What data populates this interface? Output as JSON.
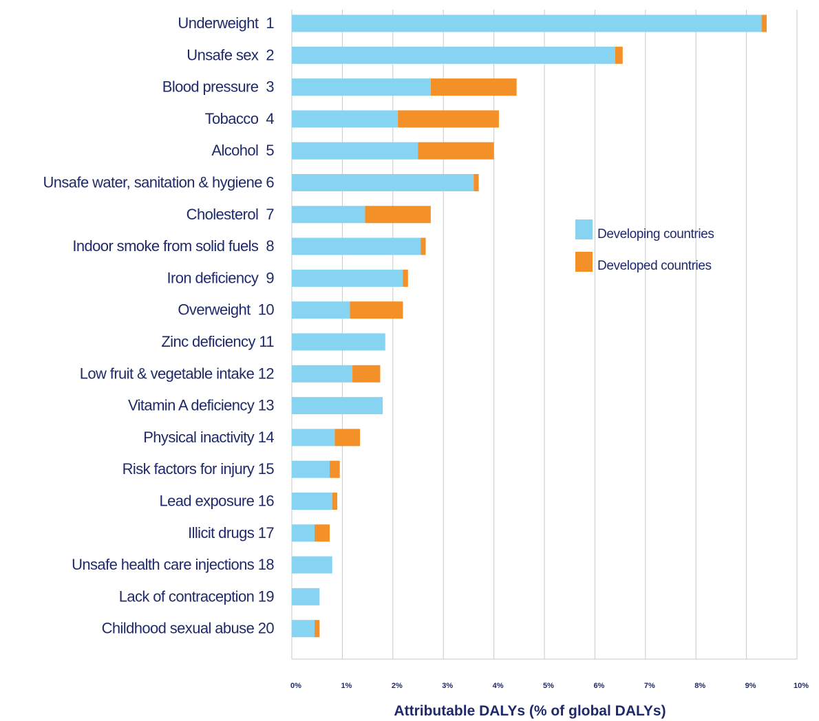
{
  "chart_data": {
    "type": "bar",
    "orientation": "horizontal",
    "stacked": true,
    "categories": [
      "Underweight  1",
      "Unsafe sex  2",
      "Blood pressure  3",
      "Tobacco  4",
      "Alcohol  5",
      "Unsafe water, sanitation & hygiene 6",
      "Cholesterol  7",
      "Indoor smoke from solid fuels  8",
      "Iron deficiency  9",
      "Overweight  10",
      "Zinc deficiency 11",
      "Low fruit & vegetable intake 12",
      "Vitamin A deficiency 13",
      "Physical inactivity 14",
      "Risk factors for injury 15",
      "Lead exposure 16",
      "Illicit drugs 17",
      "Unsafe health care injections 18",
      "Lack of contraception 19",
      "Childhood sexual abuse 20"
    ],
    "series": [
      {
        "name": "Developing countries",
        "color": "#87d4f2",
        "values": [
          9.3,
          6.4,
          2.75,
          2.1,
          2.5,
          3.6,
          1.45,
          2.55,
          2.2,
          1.15,
          1.85,
          1.2,
          1.8,
          0.85,
          0.75,
          0.8,
          0.45,
          0.8,
          0.55,
          0.45
        ]
      },
      {
        "name": "Developed countries",
        "color": "#f39028",
        "values": [
          0.1,
          0.15,
          1.7,
          2.0,
          1.5,
          0.1,
          1.3,
          0.1,
          0.1,
          1.05,
          0,
          0.55,
          0,
          0.5,
          0.2,
          0.1,
          0.3,
          0,
          0,
          0.1
        ]
      }
    ],
    "xlim": [
      0,
      10
    ],
    "x_ticks": [
      "0%",
      "1%",
      "2%",
      "3%",
      "4%",
      "5%",
      "6%",
      "7%",
      "8%",
      "9%",
      "10%"
    ],
    "xlabel": "Attributable DALYs (% of global DALYs)",
    "ylabel": "",
    "title": "",
    "grid": "vertical",
    "legend_position": "right"
  }
}
